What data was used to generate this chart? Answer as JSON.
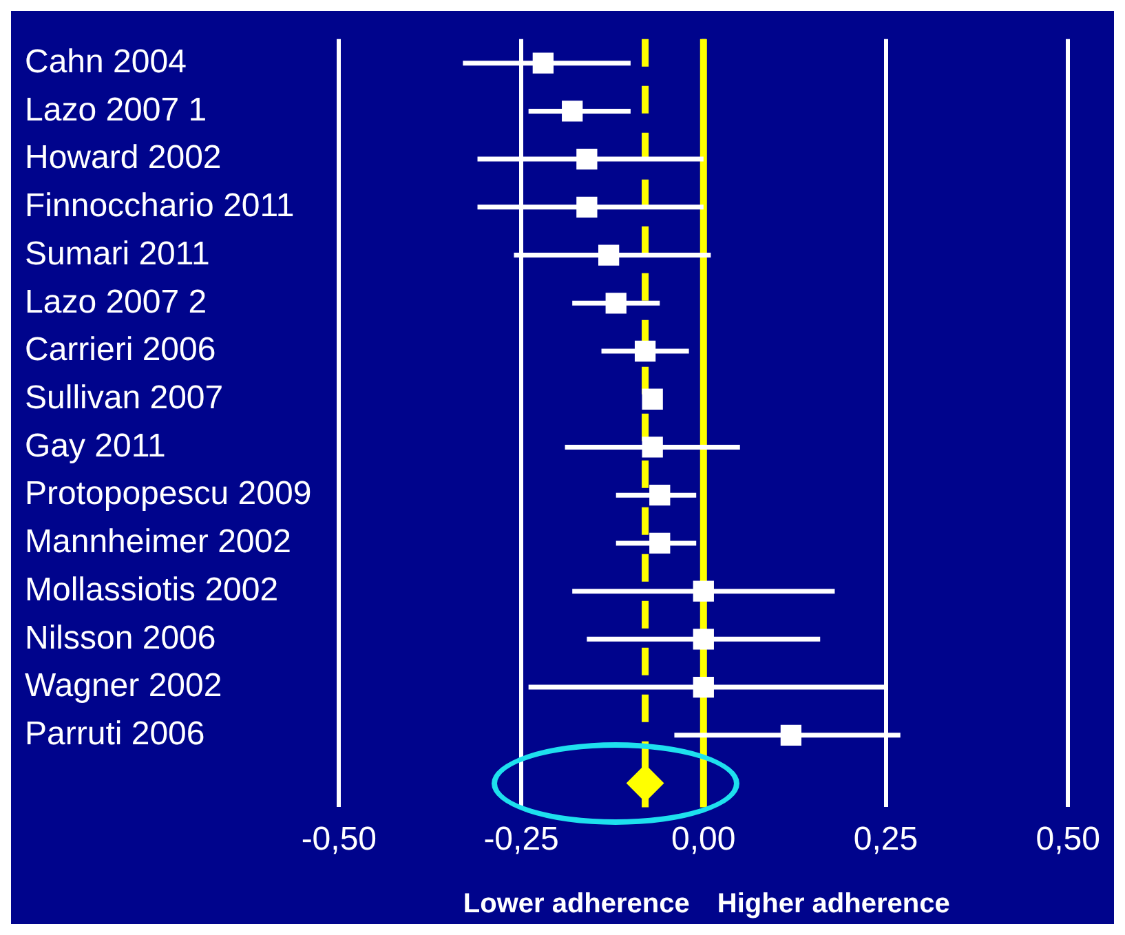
{
  "chart_data": {
    "type": "scatter",
    "orientation": "horizontal",
    "categories": [
      "Cahn 2004",
      "Lazo 2007 1",
      "Howard 2002",
      "Finnocchario 2011",
      "Sumari 2011",
      "Lazo 2007 2",
      "Carrieri 2006",
      "Sullivan 2007",
      "Gay 2011",
      "Protopopescu 2009",
      "Mannheimer 2002",
      "Mollassiotis 2002",
      "Nilsson 2006",
      "Wagner 2002",
      "Parruti 2006",
      null
    ],
    "series": [
      {
        "color": "#ffffff",
        "marker": "square",
        "values": [
          -0.22,
          -0.18,
          -0.16,
          -0.16,
          -0.13,
          -0.12,
          -0.08,
          -0.07,
          -0.07,
          -0.06,
          -0.06,
          0.0,
          0.0,
          0.0,
          0.12,
          null
        ],
        "errors": [
          [
            -0.33,
            -0.1
          ],
          [
            -0.24,
            -0.1
          ],
          [
            -0.31,
            0.0
          ],
          [
            -0.31,
            0.0
          ],
          [
            -0.26,
            0.01
          ],
          [
            -0.18,
            -0.06
          ],
          [
            -0.14,
            -0.02
          ],
          null,
          [
            -0.19,
            0.05
          ],
          [
            -0.12,
            -0.01
          ],
          [
            -0.12,
            -0.01
          ],
          [
            -0.18,
            0.18
          ],
          [
            -0.16,
            0.16
          ],
          [
            -0.24,
            0.25
          ],
          [
            -0.04,
            0.27
          ],
          null
        ]
      },
      {
        "color": "#ffff00",
        "marker": "diamond",
        "values": [
          null,
          null,
          null,
          null,
          null,
          null,
          null,
          null,
          null,
          null,
          null,
          null,
          null,
          null,
          null,
          -0.08
        ]
      }
    ],
    "xlim": [
      -0.5,
      0.5
    ],
    "xticks": [
      {
        "value": -0.5,
        "label": "-0,50"
      },
      {
        "value": -0.25,
        "label": "-0,25"
      },
      {
        "value": 0,
        "label": "0,00"
      },
      {
        "value": 0.25,
        "label": "0,25"
      },
      {
        "value": 0.5,
        "label": "0,50"
      }
    ],
    "grid": "x",
    "legend": false,
    "ref_lines": [
      {
        "axis": "x",
        "value": 0,
        "color": "#ffff00",
        "line_style": "solid"
      },
      {
        "axis": "x",
        "value": -0.08,
        "color": "#ffff00",
        "line_style": "dashed"
      }
    ],
    "annotations": [
      "Lower adherence",
      "Higher adherence"
    ]
  }
}
